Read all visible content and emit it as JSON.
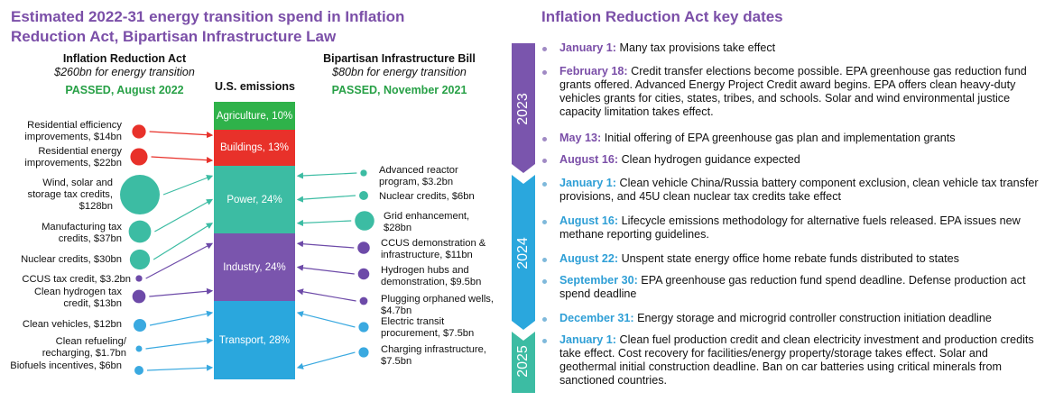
{
  "colors": {
    "purple": "#7b4fa8",
    "teal": "#2fb89a",
    "blue": "#2f9fd6",
    "green_text": "#27a046",
    "agri": "#2fb24a",
    "buildings": "#e8312a",
    "power": "#3cbca3",
    "industry": "#7a55ad",
    "transport": "#2aa7dd",
    "dot_red": "#e8312a",
    "dot_teal": "#3cbca3",
    "dot_purple": "#6d4aa8",
    "dot_blue": "#3aa9e0"
  },
  "left": {
    "title": "Estimated 2022-31 energy transition spend in Inflation Reduction Act, Bipartisan Infrastructure Law",
    "ira": {
      "name": "Inflation Reduction Act",
      "amount": "$260bn for energy transition",
      "status": "PASSED, August 2022"
    },
    "bil": {
      "name": "Bipartisan Infrastructure Bill",
      "amount": "$80bn for energy transition",
      "status": "PASSED, November 2021"
    },
    "emissions_label": "U.S. emissions",
    "segments": [
      {
        "label": "Agriculture, 10%",
        "share": 10
      },
      {
        "label": "Buildings, 13%",
        "share": 13
      },
      {
        "label": "Power, 24%",
        "share": 24
      },
      {
        "label": "Industry, 24%",
        "share": 24
      },
      {
        "label": "Transport, 28%",
        "share": 28
      }
    ],
    "ira_items": [
      {
        "label": "Residential efficiency improvements, $14bn",
        "value_bn": 14,
        "sector": "Buildings"
      },
      {
        "label": "Residential energy improvements, $22bn",
        "value_bn": 22,
        "sector": "Buildings"
      },
      {
        "label": "Wind, solar and storage tax credits, $128bn",
        "value_bn": 128,
        "sector": "Power"
      },
      {
        "label": "Manufacturing tax credits, $37bn",
        "value_bn": 37,
        "sector": "Power"
      },
      {
        "label": "Nuclear credits, $30bn",
        "value_bn": 30,
        "sector": "Power"
      },
      {
        "label": "CCUS tax credit, $3.2bn",
        "value_bn": 3.2,
        "sector": "Industry"
      },
      {
        "label": "Clean hydrogen tax credit, $13bn",
        "value_bn": 13,
        "sector": "Industry"
      },
      {
        "label": "Clean vehicles, $12bn",
        "value_bn": 12,
        "sector": "Transport"
      },
      {
        "label": "Clean refueling/ recharging, $1.7bn",
        "value_bn": 1.7,
        "sector": "Transport"
      },
      {
        "label": "Biofuels incentives, $6bn",
        "value_bn": 6,
        "sector": "Transport"
      }
    ],
    "bil_items": [
      {
        "label": "Advanced reactor program, $3.2bn",
        "value_bn": 3.2,
        "sector": "Power"
      },
      {
        "label": "Nuclear credits, $6bn",
        "value_bn": 6,
        "sector": "Power"
      },
      {
        "label": "Grid enhancement, $28bn",
        "value_bn": 28,
        "sector": "Power"
      },
      {
        "label": "CCUS demonstration & infrastructure, $11bn",
        "value_bn": 11,
        "sector": "Industry"
      },
      {
        "label": "Hydrogen hubs and demonstration, $9.5bn",
        "value_bn": 9.5,
        "sector": "Industry"
      },
      {
        "label": "Plugging orphaned wells, $4.7bn",
        "value_bn": 4.7,
        "sector": "Industry"
      },
      {
        "label": "Electric transit procurement, $7.5bn",
        "value_bn": 7.5,
        "sector": "Transport"
      },
      {
        "label": "Charging infrastructure, $7.5bn",
        "value_bn": 7.5,
        "sector": "Transport"
      }
    ]
  },
  "right": {
    "title": "Inflation Reduction Act key dates",
    "years": [
      "2023",
      "2024",
      "2025"
    ],
    "events": [
      {
        "date": "January 1:",
        "text": " Many tax provisions take effect",
        "year": "2023"
      },
      {
        "date": "February 18:",
        "text": " Credit transfer elections become possible. EPA greenhouse gas reduction fund grants offered. Advanced Energy Project Credit award begins. EPA offers clean heavy-duty vehicles grants for cities, states, tribes, and schools. Solar and wind environmental justice capacity limitation takes effect.",
        "year": "2023"
      },
      {
        "date": "May 13:",
        "text": " Initial offering of EPA greenhouse gas plan and implementation grants",
        "year": "2023"
      },
      {
        "date": "August 16:",
        "text": " Clean hydrogen guidance expected",
        "year": "2023"
      },
      {
        "date": "January 1:",
        "text": " Clean vehicle China/Russia battery component exclusion, clean vehicle tax transfer provisions, and 45U clean nuclear tax credits take effect",
        "year": "2024"
      },
      {
        "date": "August 16:",
        "text": " Lifecycle emissions methodology for alternative fuels released. EPA issues new methane reporting guidelines.",
        "year": "2024"
      },
      {
        "date": "August 22:",
        "text": " Unspent state energy office home rebate funds distributed to states",
        "year": "2024"
      },
      {
        "date": "September 30:",
        "text": " EPA greenhouse gas reduction fund spend deadline. Defense production act spend deadline",
        "year": "2024"
      },
      {
        "date": "December 31:",
        "text": " Energy storage and microgrid controller construction initiation deadline",
        "year": "2024"
      },
      {
        "date": "January 1:",
        "text": " Clean fuel production credit and clean electricity investment and production credits take effect. Cost recovery for facilities/energy property/storage takes effect. Solar and geothermal initial construction deadline. Ban on car batteries using critical minerals from sanctioned countries.",
        "year": "2025"
      }
    ]
  }
}
